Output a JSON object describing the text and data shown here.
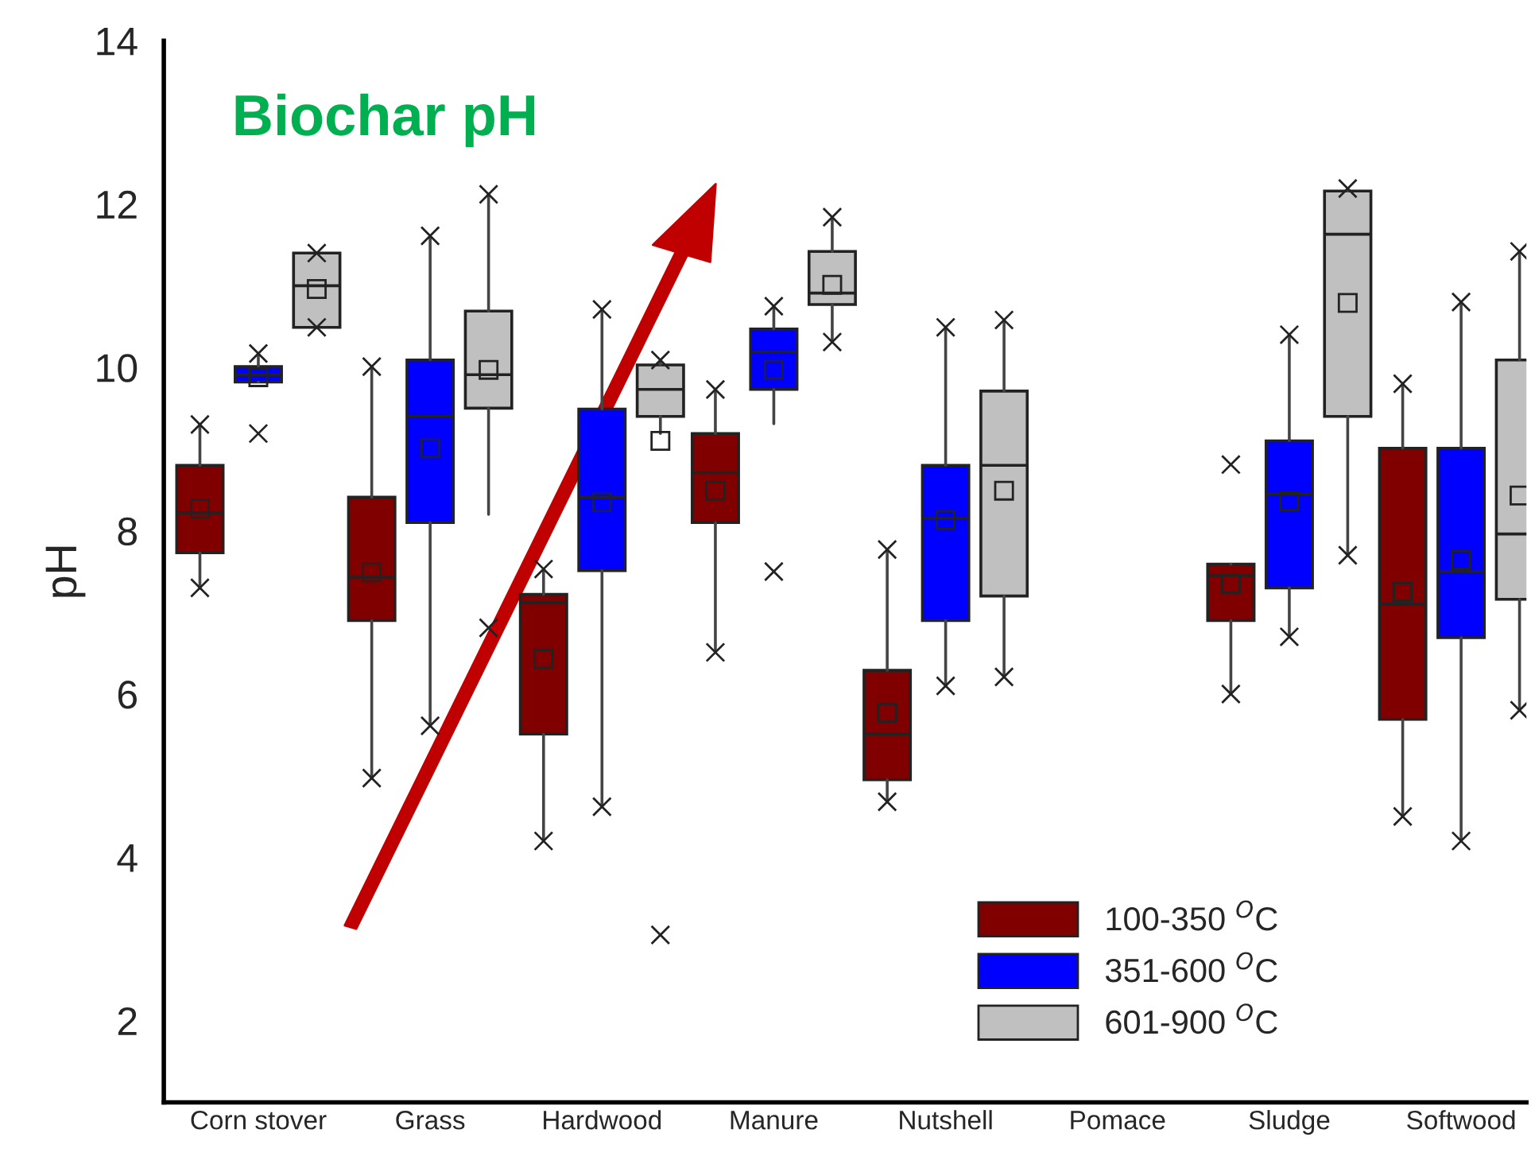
{
  "chart_data": {
    "type": "box",
    "title": "Biochar pH",
    "ylabel": "pH",
    "categories": [
      "Corn stover",
      "Grass",
      "Hardwood",
      "Manure",
      "Nutshell",
      "Pomace",
      "Sludge",
      "Softwood"
    ],
    "ylim": [
      1,
      14
    ],
    "yticks": [
      2,
      4,
      6,
      8,
      10,
      12,
      14
    ],
    "grid": false,
    "legend": "bottom right",
    "series": [
      {
        "name": "100-350 $^{O}$C",
        "color": "#800000",
        "boxes": [
          {
            "low": 7.3,
            "q1": 7.73,
            "median": 8.22,
            "q3": 8.8,
            "high": 9.3,
            "mean": 8.27,
            "outliers": [
              7.3,
              9.3
            ]
          },
          {
            "low": 4.97,
            "q1": 6.9,
            "median": 7.43,
            "q3": 8.41,
            "high": 10.01,
            "mean": 7.49,
            "outliers": [
              4.97,
              10.01
            ]
          },
          {
            "low": 4.2,
            "q1": 5.51,
            "median": 7.12,
            "q3": 7.22,
            "high": 7.53,
            "mean": 6.43,
            "outliers": [
              4.2,
              7.53
            ]
          },
          {
            "low": 6.51,
            "q1": 8.1,
            "median": 8.71,
            "q3": 9.19,
            "high": 9.73,
            "mean": 8.49,
            "outliers": [
              6.51,
              9.73
            ]
          },
          {
            "low": 4.68,
            "q1": 4.95,
            "median": 5.51,
            "q3": 6.29,
            "high": 7.77,
            "mean": 5.77,
            "outliers": [
              4.68,
              7.77
            ]
          },
          null,
          {
            "low": 6.0,
            "q1": 6.9,
            "median": 7.45,
            "q3": 7.59,
            "high": 7.59,
            "mean": 7.35,
            "outliers": [
              6.0,
              8.81
            ]
          },
          {
            "low": 4.5,
            "q1": 5.69,
            "median": 7.1,
            "q3": 9.01,
            "high": 9.8,
            "mean": 7.25,
            "outliers": [
              4.5,
              9.8
            ]
          }
        ]
      },
      {
        "name": "351-600 $^{O}$C",
        "color": "#0000ff",
        "boxes": [
          {
            "low": 9.82,
            "q1": 9.82,
            "median": 9.91,
            "q3": 10.01,
            "high": 10.17,
            "mean": 9.88,
            "outliers": [
              9.19,
              10.17
            ]
          },
          {
            "low": 5.61,
            "q1": 8.1,
            "median": 9.4,
            "q3": 10.09,
            "high": 11.61,
            "mean": 9.01,
            "outliers": [
              5.61,
              11.61
            ]
          },
          {
            "low": 4.62,
            "q1": 7.51,
            "median": 8.41,
            "q3": 9.49,
            "high": 10.71,
            "mean": 8.35,
            "outliers": [
              4.62,
              10.71
            ]
          },
          {
            "low": 9.31,
            "q1": 9.73,
            "median": 10.19,
            "q3": 10.47,
            "high": 10.75,
            "mean": 9.97,
            "outliers": [
              7.5,
              10.75
            ]
          },
          {
            "low": 6.1,
            "q1": 6.9,
            "median": 8.15,
            "q3": 8.8,
            "high": 10.49,
            "mean": 8.13,
            "outliers": [
              6.1,
              10.49
            ]
          },
          null,
          {
            "low": 6.7,
            "q1": 7.3,
            "median": 8.45,
            "q3": 9.1,
            "high": 10.4,
            "mean": 8.36,
            "outliers": [
              6.7,
              10.4
            ]
          },
          {
            "low": 4.2,
            "q1": 6.69,
            "median": 7.5,
            "q3": 9.01,
            "high": 10.8,
            "mean": 7.64,
            "outliers": [
              4.2,
              10.8
            ]
          }
        ]
      },
      {
        "name": "601-900 $^{O}$C",
        "color": "#c0c0c0",
        "boxes": [
          {
            "low": 10.49,
            "q1": 10.49,
            "median": 11.0,
            "q3": 11.4,
            "high": 11.4,
            "mean": 10.96,
            "outliers": [
              10.49,
              11.4
            ]
          },
          {
            "low": 8.2,
            "q1": 9.5,
            "median": 9.91,
            "q3": 10.69,
            "high": 12.12,
            "mean": 9.97,
            "outliers": [
              6.81,
              12.12
            ]
          },
          {
            "low": 9.19,
            "q1": 9.4,
            "median": 9.73,
            "q3": 10.03,
            "high": 10.09,
            "mean": 9.1,
            "outliers": [
              3.05,
              10.09
            ]
          },
          {
            "low": 10.31,
            "q1": 10.77,
            "median": 10.91,
            "q3": 11.42,
            "high": 11.84,
            "mean": 11.01,
            "outliers": [
              10.31,
              11.84
            ]
          },
          {
            "low": 6.21,
            "q1": 7.2,
            "median": 8.8,
            "q3": 9.71,
            "high": 10.58,
            "mean": 8.49,
            "outliers": [
              6.21,
              10.58
            ]
          },
          null,
          {
            "low": 7.7,
            "q1": 9.4,
            "median": 11.63,
            "q3": 12.16,
            "high": 12.19,
            "mean": 10.79,
            "outliers": [
              7.7,
              12.19
            ]
          },
          {
            "low": 5.8,
            "q1": 7.16,
            "median": 7.96,
            "q3": 10.09,
            "high": 11.42,
            "mean": 8.43,
            "outliers": [
              5.8,
              11.42
            ]
          }
        ]
      }
    ]
  }
}
